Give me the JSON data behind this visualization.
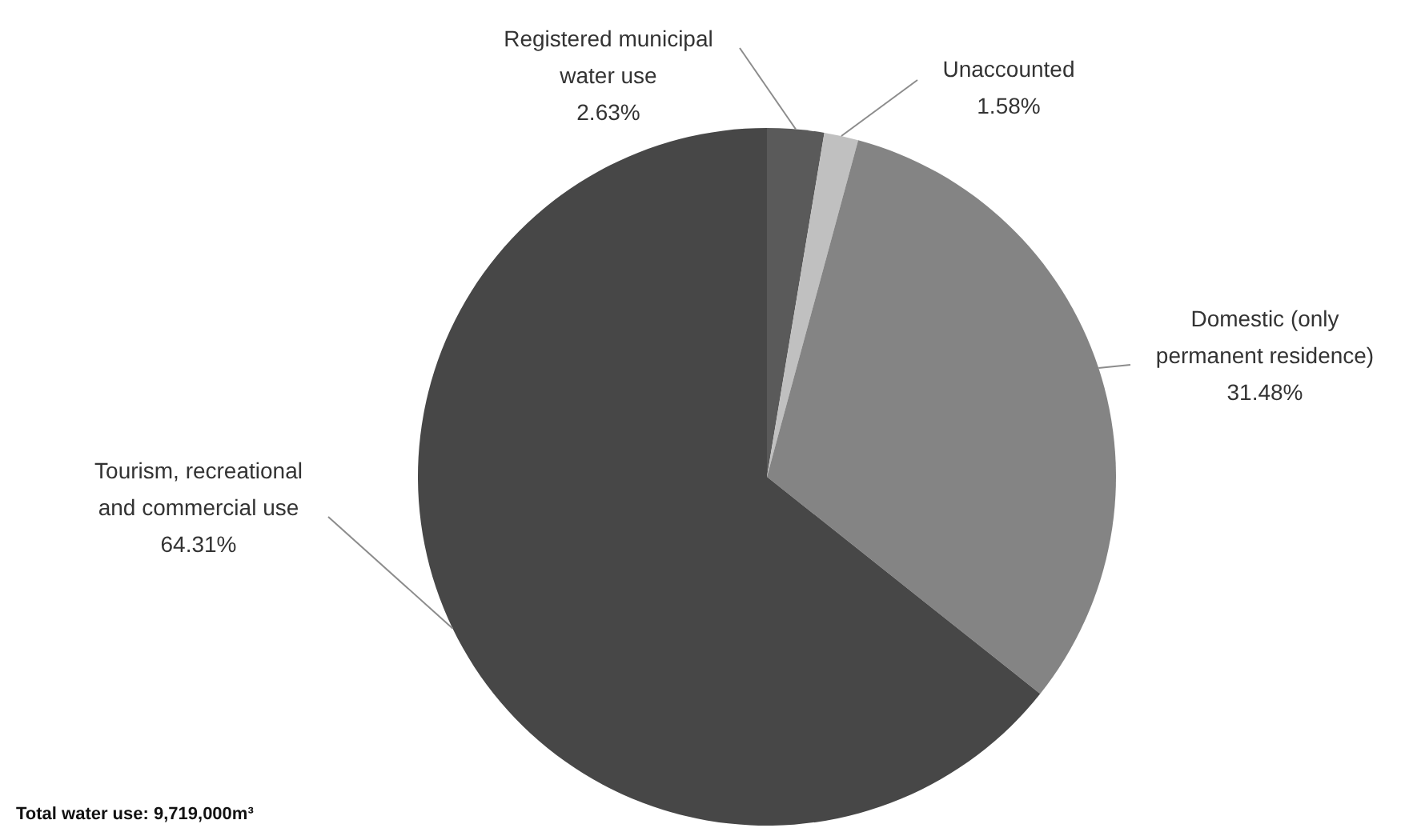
{
  "chart_data": {
    "type": "pie",
    "categories": [
      "Registered municipal water use",
      "Unaccounted",
      "Domestic (only permanent residence)",
      "Tourism, recreational and commercial use"
    ],
    "values": [
      2.63,
      1.58,
      31.48,
      64.31
    ],
    "value_labels": [
      "2.63%",
      "1.58%",
      "31.48%",
      "64.31%"
    ],
    "colors": [
      "#5a5a5a",
      "#c0c0c0",
      "#848484",
      "#474747"
    ],
    "annotations": [
      "Total water use: 9,719,000m³"
    ]
  }
}
